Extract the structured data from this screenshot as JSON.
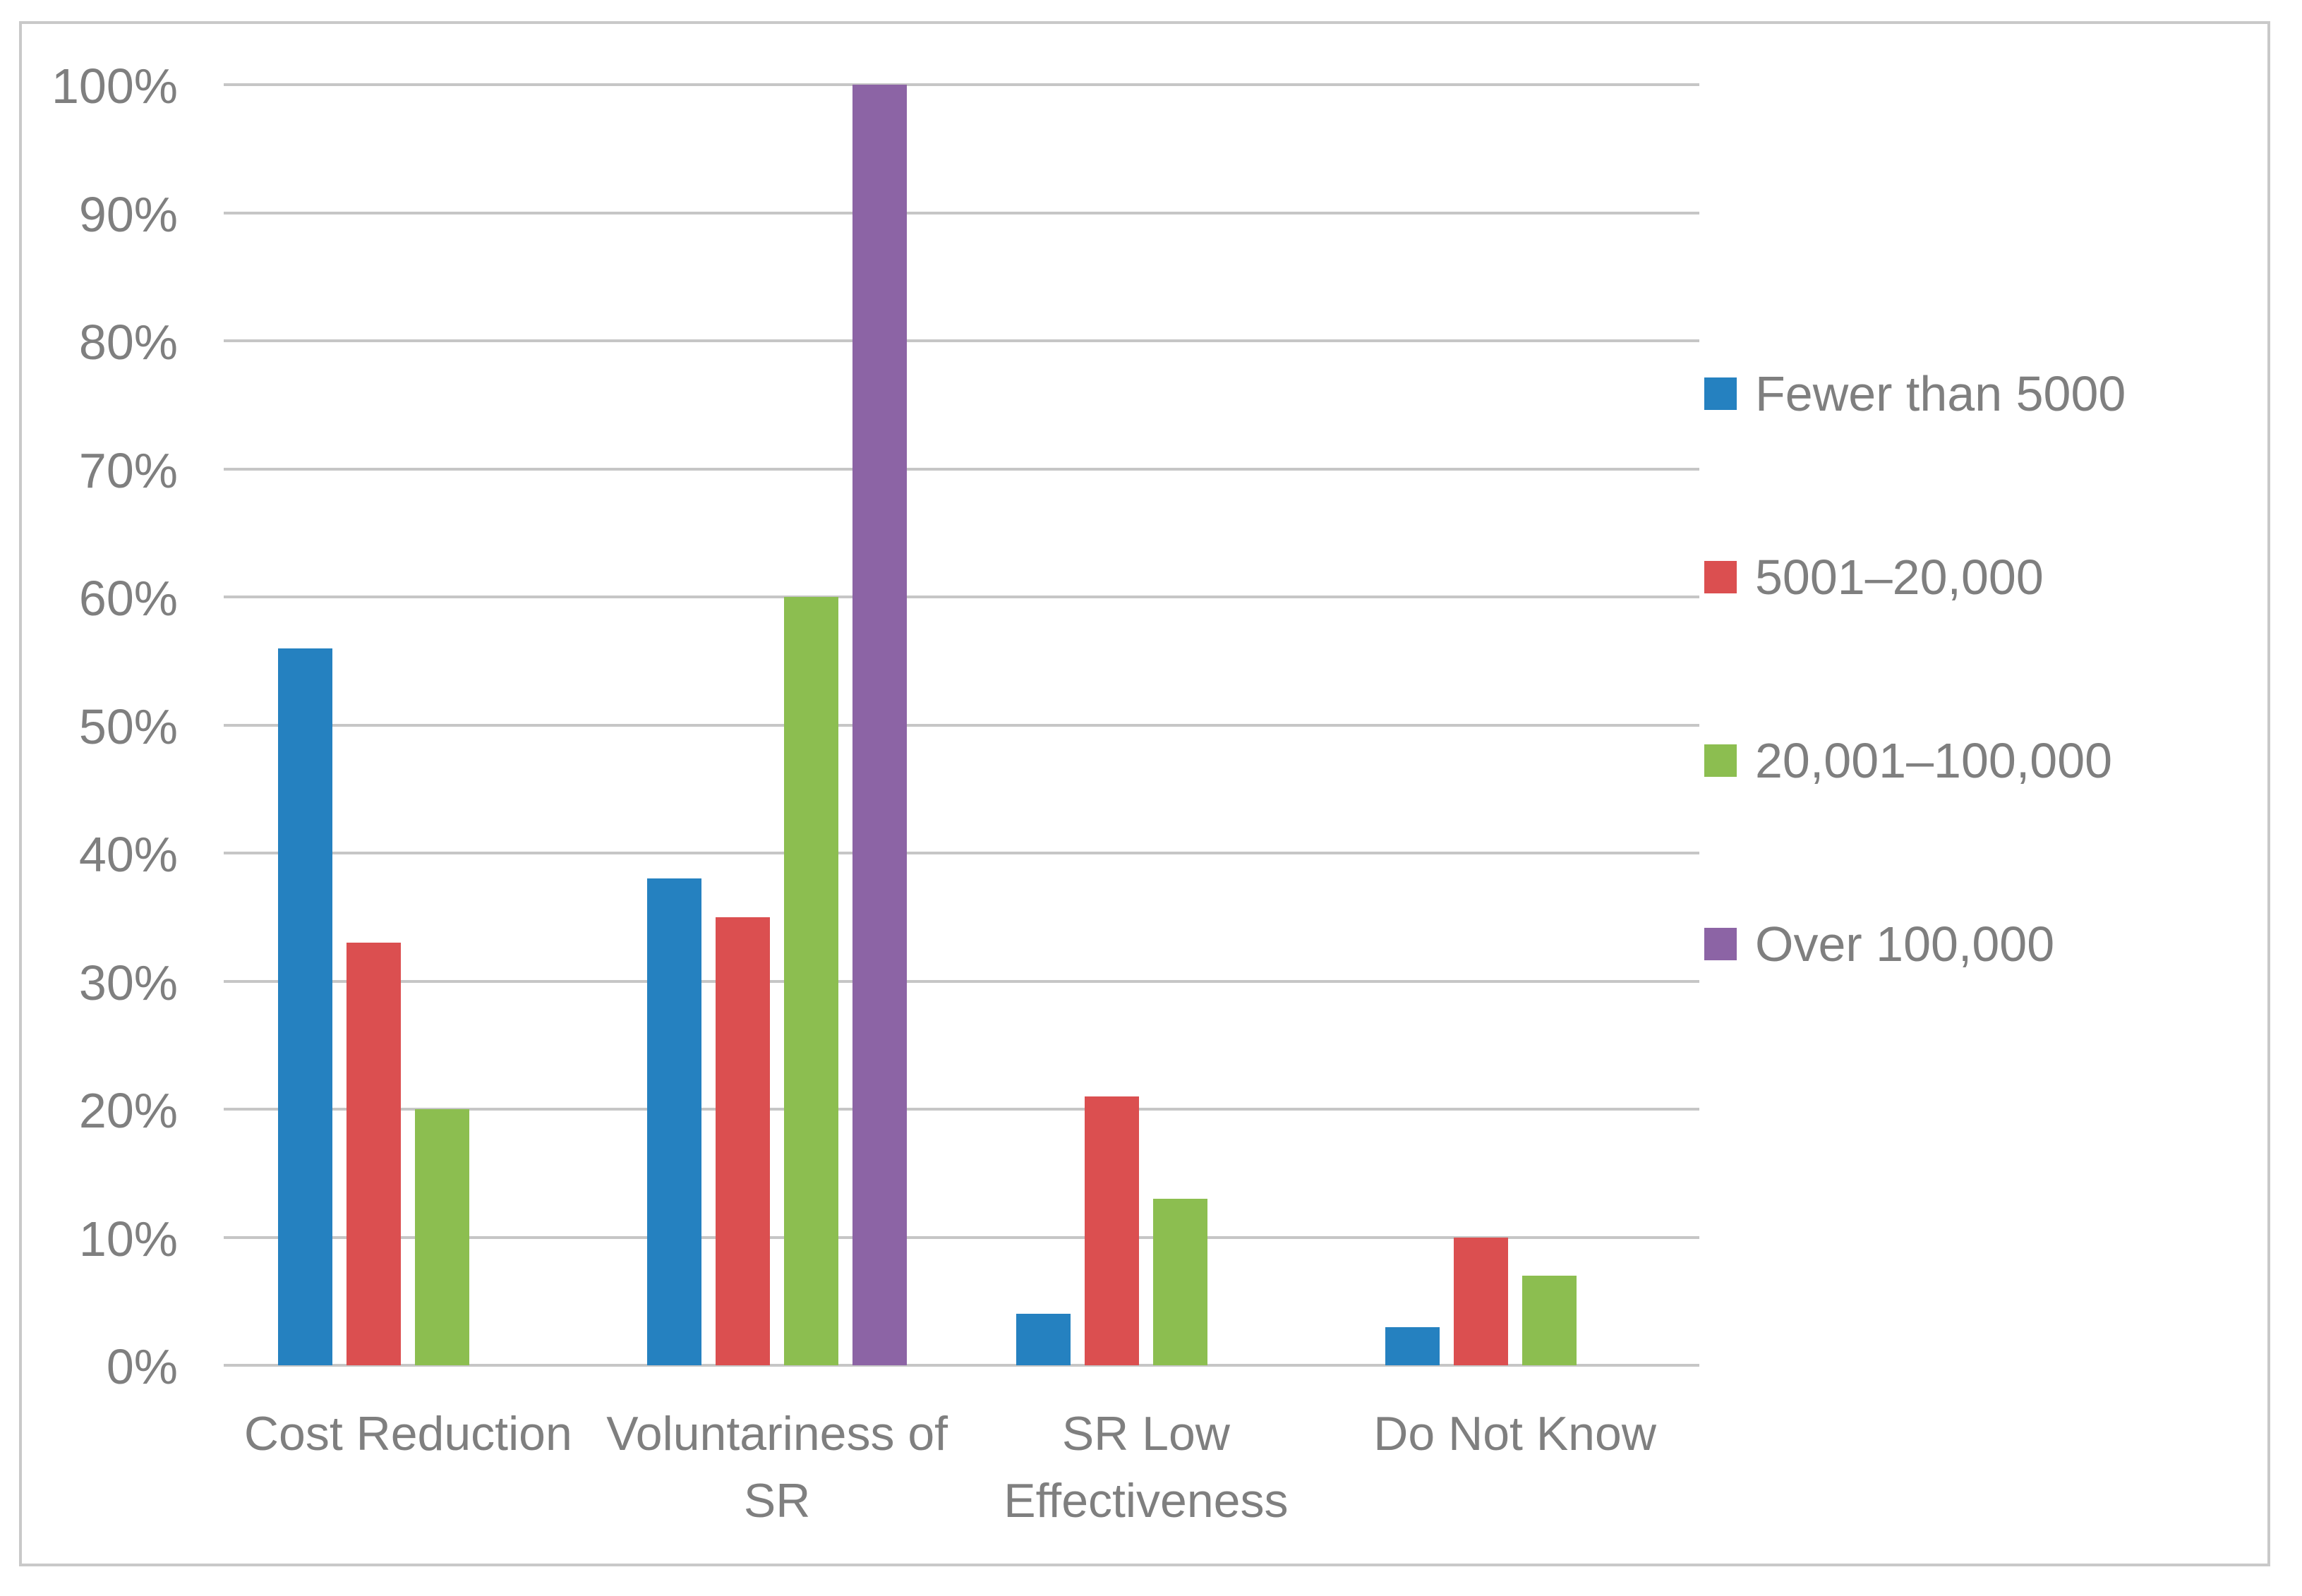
{
  "chart_data": {
    "type": "bar",
    "title": "",
    "xlabel": "",
    "ylabel": "",
    "categories": [
      "Cost Reduction",
      "Voluntariness of\nSR",
      "SR Low\nEffectiveness",
      "Do Not Know"
    ],
    "series": [
      {
        "name": "Fewer than 5000",
        "color": "#2581C0",
        "values": [
          56,
          38,
          4,
          3
        ]
      },
      {
        "name": "5001–20,000",
        "color": "#DB4F50",
        "values": [
          33,
          35,
          21,
          10
        ]
      },
      {
        "name": "20,001–100,000",
        "color": "#8CBE50",
        "values": [
          20,
          60,
          13,
          7
        ]
      },
      {
        "name": "Over 100,000",
        "color": "#8C64A5",
        "values": [
          0,
          100,
          0,
          0
        ]
      }
    ],
    "y_axis": {
      "min": 0,
      "max": 100,
      "step": 10,
      "unit": "%",
      "tick_labels": [
        "0%",
        "10%",
        "20%",
        "30%",
        "40%",
        "50%",
        "60%",
        "70%",
        "80%",
        "90%",
        "100%"
      ]
    },
    "legend_position": "right",
    "grid": true,
    "colors": {
      "text": "#7F7F7F",
      "gridline": "#C6C6C6",
      "frame_border": "#C9C9C9",
      "background": "#FFFFFF"
    }
  }
}
